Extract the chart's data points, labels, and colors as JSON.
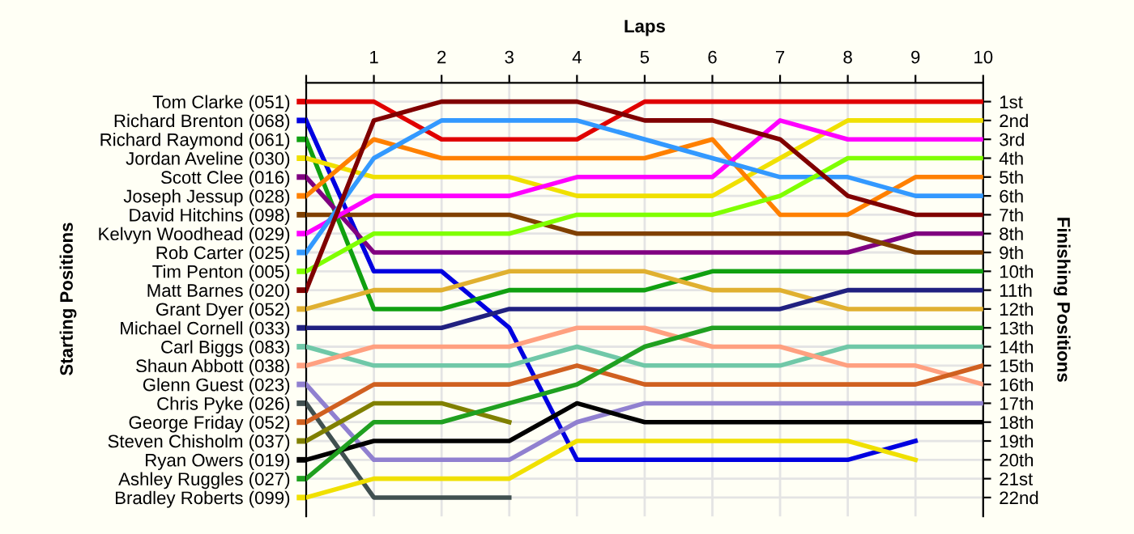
{
  "chart_data": {
    "type": "line",
    "xlabel": "Laps",
    "annotations": [
      "Starting Positions"
    ],
    "y2label": "Finishing Positions",
    "legend": "left",
    "x": [
      0,
      1,
      2,
      3,
      4,
      5,
      6,
      7,
      8,
      9,
      10
    ],
    "xlim": [
      0,
      10
    ],
    "xticks": [
      {
        "value": 0,
        "label": null
      },
      1,
      2,
      3,
      4,
      5,
      6,
      7,
      8,
      9,
      10
    ],
    "y2lim": [
      23,
      0
    ],
    "grid": true,
    "marker": "none",
    "line_style": "solid",
    "y2ticks": [
      {
        "value": 1,
        "label": "1st"
      },
      {
        "value": 2,
        "label": "2nd"
      },
      {
        "value": 3,
        "label": "3rd"
      },
      {
        "value": 4,
        "label": "4th"
      },
      {
        "value": 5,
        "label": "5th"
      },
      {
        "value": 6,
        "label": "6th"
      },
      {
        "value": 7,
        "label": "7th"
      },
      {
        "value": 8,
        "label": "8th"
      },
      {
        "value": 9,
        "label": "9th"
      },
      {
        "value": 10,
        "label": "10th"
      },
      {
        "value": 11,
        "label": "11th"
      },
      {
        "value": 12,
        "label": "12th"
      },
      {
        "value": 13,
        "label": "13th"
      },
      {
        "value": 14,
        "label": "14th"
      },
      {
        "value": 15,
        "label": "15th"
      },
      {
        "value": 16,
        "label": "16th"
      },
      {
        "value": 17,
        "label": "17th"
      },
      {
        "value": 18,
        "label": "18th"
      },
      {
        "value": 19,
        "label": "19th"
      },
      {
        "value": 20,
        "label": "20th"
      },
      {
        "value": 21,
        "label": "21st"
      },
      {
        "value": 22,
        "label": "22nd"
      }
    ],
    "series": [
      {
        "name": "Tom Clarke (051)",
        "axis": "y2",
        "color": "#e00000",
        "values": [
          1,
          1,
          3,
          3,
          3,
          1,
          1,
          1,
          1,
          1,
          1
        ]
      },
      {
        "name": "Richard Brenton (068)",
        "axis": "y2",
        "color": "#0000e0",
        "values": [
          2,
          10,
          10,
          13,
          20,
          20,
          20,
          20,
          20,
          19,
          null
        ]
      },
      {
        "name": "Richard Raymond (061)",
        "axis": "y2",
        "color": "#10a010",
        "values": [
          3,
          12,
          12,
          11,
          11,
          11,
          10,
          10,
          10,
          10,
          10
        ]
      },
      {
        "name": "Jordan Aveline (030)",
        "axis": "y2",
        "color": "#f0e000",
        "values": [
          4,
          5,
          5,
          5,
          6,
          6,
          6,
          4,
          2,
          2,
          2
        ]
      },
      {
        "name": "Scott Clee (016)",
        "axis": "y2",
        "color": "#800080",
        "values": [
          5,
          9,
          9,
          9,
          9,
          9,
          9,
          9,
          9,
          8,
          8
        ]
      },
      {
        "name": "Joseph Jessup (028)",
        "axis": "y2",
        "color": "#ff8000",
        "values": [
          6,
          3,
          4,
          4,
          4,
          4,
          3,
          7,
          7,
          5,
          5
        ]
      },
      {
        "name": "David Hitchins (098)",
        "axis": "y2",
        "color": "#804000",
        "values": [
          7,
          7,
          7,
          7,
          8,
          8,
          8,
          8,
          8,
          9,
          9
        ]
      },
      {
        "name": "Kelvyn Woodhead (029)",
        "axis": "y2",
        "color": "#ff00ff",
        "values": [
          8,
          6,
          6,
          6,
          5,
          5,
          5,
          2,
          3,
          3,
          3
        ]
      },
      {
        "name": "Rob Carter (025)",
        "axis": "y2",
        "color": "#3399ff",
        "values": [
          9,
          4,
          2,
          2,
          2,
          3,
          4,
          5,
          5,
          6,
          6
        ]
      },
      {
        "name": "Tim Penton (005)",
        "axis": "y2",
        "color": "#80ff00",
        "values": [
          10,
          8,
          8,
          8,
          7,
          7,
          7,
          6,
          4,
          4,
          4
        ]
      },
      {
        "name": "Matt Barnes (020)",
        "axis": "y2",
        "color": "#800000",
        "values": [
          11,
          2,
          1,
          1,
          1,
          2,
          2,
          3,
          6,
          7,
          7
        ]
      },
      {
        "name": "Grant Dyer (052)",
        "axis": "y2",
        "color": "#e0b030",
        "values": [
          12,
          11,
          11,
          10,
          10,
          10,
          11,
          11,
          12,
          12,
          12
        ]
      },
      {
        "name": "Michael Cornell (033)",
        "axis": "y2",
        "color": "#202080",
        "values": [
          13,
          13,
          13,
          12,
          12,
          12,
          12,
          12,
          11,
          11,
          11
        ]
      },
      {
        "name": "Carl Biggs (083)",
        "axis": "y2",
        "color": "#70c8a8",
        "values": [
          14,
          15,
          15,
          15,
          14,
          15,
          15,
          15,
          14,
          14,
          14
        ]
      },
      {
        "name": "Shaun Abbott (038)",
        "axis": "y2",
        "color": "#ffa080",
        "values": [
          15,
          14,
          14,
          14,
          13,
          13,
          14,
          14,
          15,
          15,
          16
        ]
      },
      {
        "name": "Glenn Guest (023)",
        "axis": "y2",
        "color": "#9080d0",
        "values": [
          16,
          20,
          20,
          20,
          18,
          17,
          17,
          17,
          17,
          17,
          17
        ]
      },
      {
        "name": "Chris Pyke (026)",
        "axis": "y2",
        "color": "#405050",
        "values": [
          17,
          22,
          22,
          22,
          null,
          null,
          null,
          null,
          null,
          null,
          null
        ]
      },
      {
        "name": "George Friday (052)",
        "axis": "y2",
        "color": "#d06020",
        "values": [
          18,
          16,
          16,
          16,
          15,
          16,
          16,
          16,
          16,
          16,
          15
        ]
      },
      {
        "name": "Steven Chisholm (037)",
        "axis": "y2",
        "color": "#808000",
        "values": [
          19,
          17,
          17,
          18,
          null,
          null,
          null,
          null,
          null,
          null,
          null
        ]
      },
      {
        "name": "Ryan Owers (019)",
        "axis": "y2",
        "color": "#000000",
        "values": [
          20,
          19,
          19,
          19,
          17,
          18,
          18,
          18,
          18,
          18,
          18
        ]
      },
      {
        "name": "Ashley Ruggles (027)",
        "axis": "y2",
        "color": "#20a020",
        "values": [
          21,
          18,
          18,
          17,
          16,
          14,
          13,
          13,
          13,
          13,
          13
        ]
      },
      {
        "name": "Bradley Roberts (099)",
        "axis": "y2",
        "color": "#f0e000",
        "values": [
          22,
          21,
          21,
          21,
          19,
          19,
          19,
          19,
          19,
          20,
          null
        ]
      }
    ]
  }
}
